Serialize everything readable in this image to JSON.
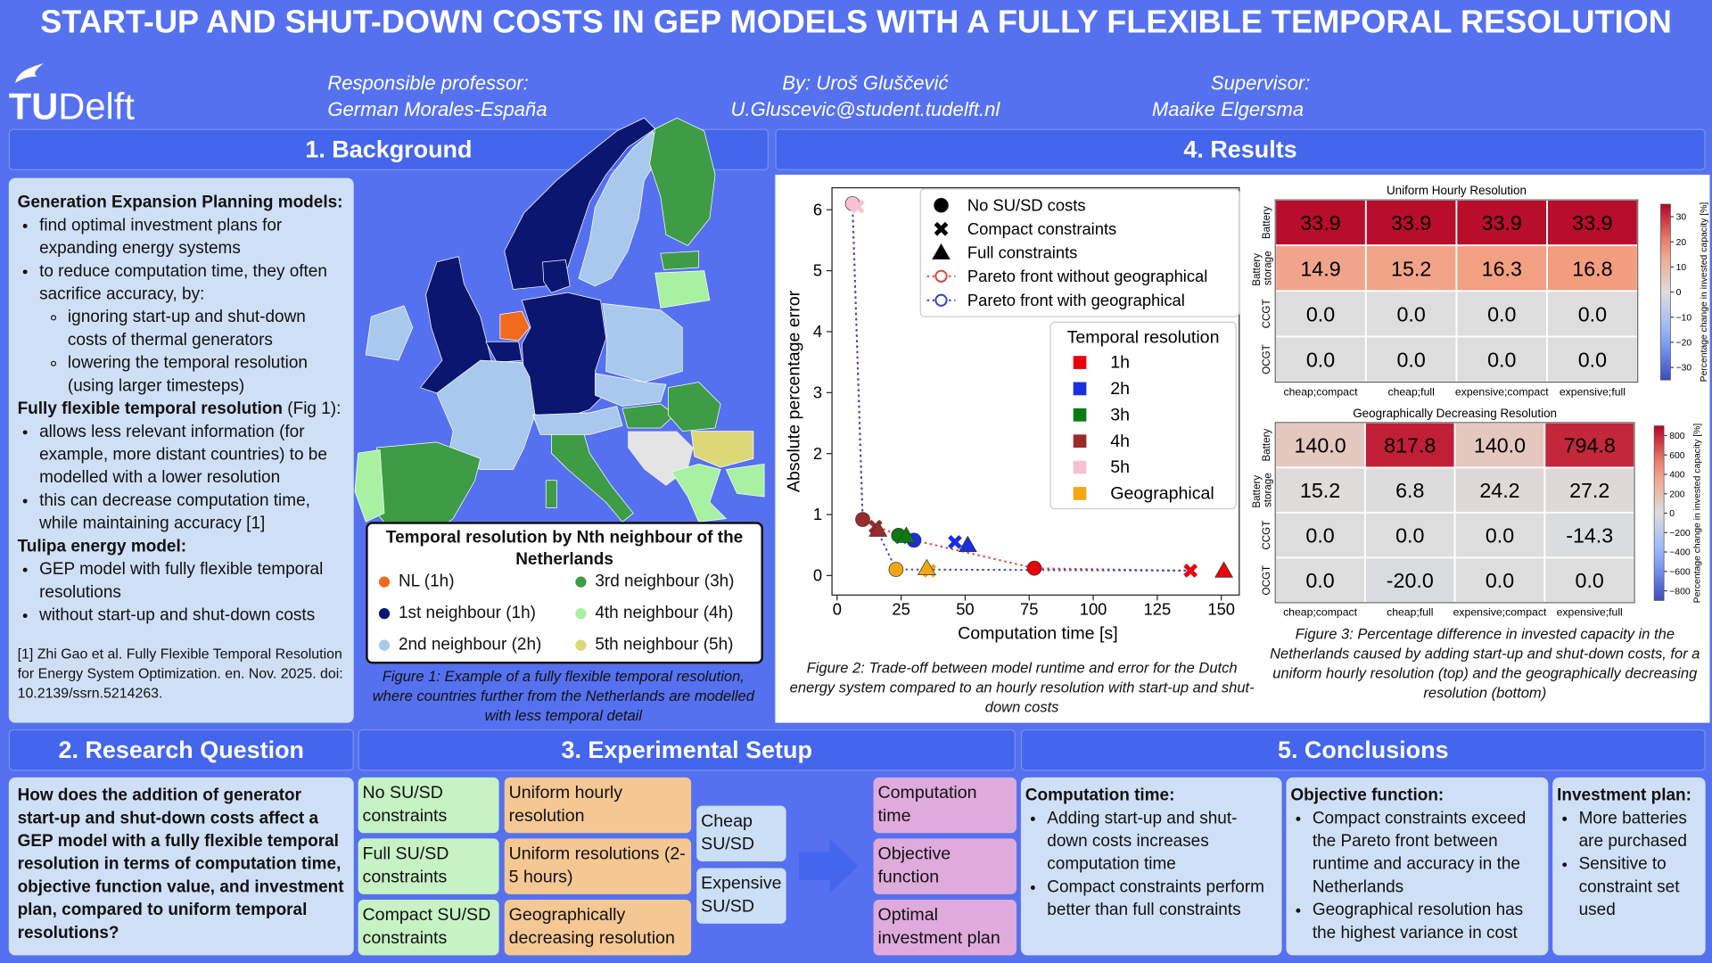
{
  "header": {
    "title": "START-UP AND SHUT-DOWN COSTS IN GEP MODELS WITH A FULLY FLEXIBLE TEMPORAL RESOLUTION",
    "logo_tu": "TU",
    "logo_delft": "Delft",
    "professor_label": "Responsible professor:",
    "professor": "German Morales-España",
    "author": "By: Uroš Gluščević",
    "email": "U.Gluscevic@student.tudelft.nl",
    "supervisor_label": "Supervisor:",
    "supervisor": "Maaike Elgersma"
  },
  "background": {
    "heading": "1. Background",
    "gep_title": "Generation Expansion Planning models:",
    "gep_points": [
      "find optimal investment plans for expanding energy systems",
      "to reduce computation time, they often sacrifice accuracy, by:"
    ],
    "gep_subpoints": [
      "ignoring start-up and shut-down costs of thermal generators",
      "lowering the temporal resolution (using larger timesteps)"
    ],
    "flex_title": "Fully flexible temporal resolution",
    "flex_note": "(Fig 1):",
    "flex_points": [
      "allows less relevant information (for example, more distant countries) to be modelled with a lower resolution",
      "this can decrease computation time, while maintaining accuracy [1]"
    ],
    "tulipa_title": "Tulipa energy model:",
    "tulipa_points": [
      "GEP model with fully flexible temporal resolutions",
      "without start-up and shut-down costs"
    ],
    "reference": "[1] Zhi Gao et al. Fully Flexible Temporal Resolution for Energy System Optimization. en. Nov. 2025. doi: 10.2139/ssrn.5214263."
  },
  "map": {
    "legend_title": "Temporal resolution by Nth neighbour of the Netherlands",
    "legend": [
      {
        "name": "NL (1h)",
        "color": "#f26b1d"
      },
      {
        "name": "1st neighbour (1h)",
        "color": "#0a1670"
      },
      {
        "name": "2nd neighbour (2h)",
        "color": "#a8c8ee"
      },
      {
        "name": "3rd neighbour (3h)",
        "color": "#3e9b46"
      },
      {
        "name": "4th neighbour (4h)",
        "color": "#a8f0a2"
      },
      {
        "name": "5th neighbour (5h)",
        "color": "#dcd878"
      }
    ],
    "caption": "Figure 1: Example of a fully flexible temporal resolution, where countries further from the Netherlands are modelled with less temporal detail"
  },
  "results": {
    "heading": "4. Results",
    "fig2_caption": "Figure 2: Trade-off between model runtime and error for the Dutch energy system compared to an hourly resolution with start-up and shut-down costs",
    "fig3_caption": "Figure 3: Percentage difference in invested capacity in the Netherlands caused by adding start-up and shut-down costs, for a uniform hourly resolution (top) and the geographically decreasing resolution (bottom)"
  },
  "chart_data": [
    {
      "type": "scatter",
      "xlabel": "Computation time [s]",
      "ylabel": "Absolute percentage error",
      "xlim": [
        -2,
        157
      ],
      "ylim": [
        -0.32,
        6.36
      ],
      "xticks": [
        0,
        25,
        50,
        75,
        100,
        125,
        150
      ],
      "yticks": [
        0,
        1,
        2,
        3,
        4,
        5,
        6
      ],
      "grid": false,
      "marker_legend": [
        {
          "name": "No SU/SD costs",
          "marker": "circle"
        },
        {
          "name": "Compact constraints",
          "marker": "x"
        },
        {
          "name": "Full constraints",
          "marker": "triangle"
        }
      ],
      "legend_title": "Temporal resolution",
      "series": [
        {
          "name": "1h",
          "color": "#e8000b",
          "markers": [
            "circle",
            "x",
            "triangle"
          ],
          "x": [
            77,
            138,
            151
          ],
          "values": [
            0.12,
            0.08,
            0.08
          ]
        },
        {
          "name": "2h",
          "color": "#1a2fe0",
          "markers": [
            "circle",
            "x",
            "triangle"
          ],
          "x": [
            30,
            46,
            51
          ],
          "values": [
            0.58,
            0.55,
            0.5
          ]
        },
        {
          "name": "3h",
          "color": "#0b7a12",
          "markers": [
            "circle",
            "x",
            "triangle"
          ],
          "x": [
            24,
            25,
            27
          ],
          "values": [
            0.66,
            0.63,
            0.65
          ]
        },
        {
          "name": "4h",
          "color": "#9b2a2a",
          "markers": [
            "circle",
            "x",
            "triangle"
          ],
          "x": [
            10,
            15,
            16
          ],
          "values": [
            0.92,
            0.8,
            0.75
          ]
        },
        {
          "name": "5h",
          "color": "#f7c2cf",
          "markers": [
            "circle",
            "x"
          ],
          "x": [
            6,
            8
          ],
          "values": [
            6.1,
            6.05
          ]
        },
        {
          "name": "Geographical",
          "color": "#f5a612",
          "markers": [
            "circle",
            "x",
            "triangle"
          ],
          "x": [
            23,
            36,
            35
          ],
          "values": [
            0.1,
            0.08,
            0.12
          ]
        }
      ],
      "fronts": [
        {
          "name": "Pareto front without geographical",
          "color": "#d9473f",
          "x": [
            6,
            10,
            16,
            24,
            30,
            77,
            138
          ],
          "values": [
            6.1,
            0.92,
            0.8,
            0.66,
            0.58,
            0.12,
            0.08
          ]
        },
        {
          "name": "Pareto front with geographical",
          "color": "#3544c8",
          "x": [
            6,
            10,
            15,
            23,
            138
          ],
          "values": [
            6.1,
            0.92,
            0.8,
            0.1,
            0.08
          ]
        }
      ]
    },
    {
      "type": "heatmap",
      "title": "Uniform Hourly Resolution",
      "x_categories": [
        "cheap;compact",
        "cheap;full",
        "expensive;compact",
        "expensive;full"
      ],
      "y_categories": [
        "Battery",
        "Battery storage",
        "CCGT",
        "OCGT"
      ],
      "values": [
        [
          33.9,
          33.9,
          33.9,
          33.9
        ],
        [
          14.9,
          15.2,
          16.3,
          16.8
        ],
        [
          0,
          0,
          0,
          0
        ],
        [
          0,
          0,
          0,
          0
        ]
      ],
      "value_labels": [
        [
          "33.9",
          "33.9",
          "33.9",
          "33.9"
        ],
        [
          "14.9",
          "15.2",
          "16.3",
          "16.8"
        ],
        [
          "0.0",
          "0.0",
          "0.0",
          "0.0"
        ],
        [
          "0.0",
          "0.0",
          "0.0",
          "0.0"
        ]
      ],
      "colorbar_label": "Percentage change in invested capacity [%]",
      "colormap": "coolwarm",
      "clim": [
        -35,
        35
      ],
      "cticks": [
        {
          "value": -30,
          "label": "−30"
        },
        {
          "value": -20,
          "label": "−20"
        },
        {
          "value": -10,
          "label": "−10"
        },
        0,
        10,
        20,
        30
      ]
    },
    {
      "type": "heatmap",
      "title": "Geographically Decreasing Resolution",
      "x_categories": [
        "cheap;compact",
        "cheap;full",
        "expensive;compact",
        "expensive;full"
      ],
      "y_categories": [
        "Battery",
        "Battery storage",
        "CCGT",
        "OCGT"
      ],
      "values": [
        [
          140,
          817.8,
          140,
          794.8
        ],
        [
          15.2,
          6.8,
          24.2,
          27.2
        ],
        [
          0,
          0,
          0,
          -14.3
        ],
        [
          0,
          -20,
          0,
          0
        ]
      ],
      "value_labels": [
        [
          "140.0",
          "817.8",
          "140.0",
          "794.8"
        ],
        [
          "15.2",
          "6.8",
          "24.2",
          "27.2"
        ],
        [
          "0.0",
          "0.0",
          "0.0",
          "-14.3"
        ],
        [
          "0.0",
          "-20.0",
          "0.0",
          "0.0"
        ]
      ],
      "colorbar_label": "Percentage change in invested capacity [%]",
      "colormap": "coolwarm",
      "clim": [
        -900,
        900
      ],
      "cticks": [
        {
          "value": -800,
          "label": "−800"
        },
        {
          "value": -600,
          "label": "−600"
        },
        {
          "value": -400,
          "label": "−400"
        },
        {
          "value": -200,
          "label": "−200"
        },
        0,
        200,
        400,
        600,
        800
      ]
    }
  ],
  "research": {
    "heading": "2. Research Question",
    "question": "How does the addition of generator start-up and shut-down costs affect a GEP model with a fully flexible temporal resolution in terms of computation time, objective function value, and investment plan, compared to uniform temporal resolutions?"
  },
  "setup": {
    "heading": "3. Experimental Setup",
    "constraints": [
      "No SU/SD constraints",
      "Full SU/SD constraints",
      "Compact SU/SD constraints"
    ],
    "resolutions": [
      "Uniform hourly resolution",
      "Uniform resolutions (2-5 hours)",
      "Geographically decreasing resolution"
    ],
    "costs": [
      "Cheap SU/SD",
      "Expensive SU/SD"
    ],
    "outputs": [
      "Computation time",
      "Objective function",
      "Optimal investment plan"
    ]
  },
  "conclusions": {
    "heading": "5. Conclusions",
    "columns": [
      {
        "title": "Computation time:",
        "points": [
          "Adding start-up and shut-down costs increases computation time",
          "Compact constraints perform better than full constraints"
        ]
      },
      {
        "title": "Objective function:",
        "points": [
          "Compact constraints exceed the Pareto front between runtime and accuracy in the Netherlands",
          "Geographical resolution has the highest variance in cost"
        ]
      },
      {
        "title": "Investment plan:",
        "points": [
          "More batteries are purchased",
          "Sensitive to constraint set used"
        ]
      }
    ]
  }
}
